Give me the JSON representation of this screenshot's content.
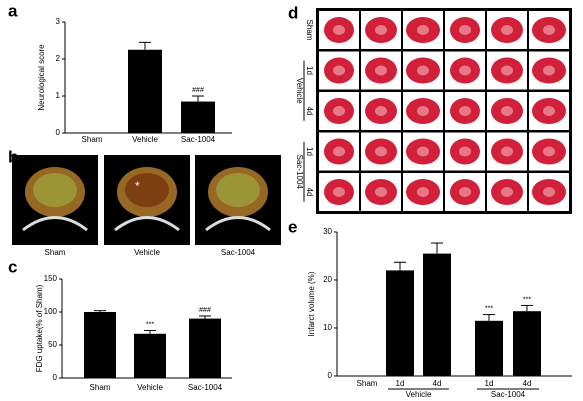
{
  "chart_data": [
    {
      "type": "bar",
      "panel": "a",
      "ylabel": "Neurological score",
      "categories": [
        "Sham",
        "Vehicle",
        "Sac-1004"
      ],
      "values": [
        0,
        2.25,
        0.85
      ],
      "errors": [
        0,
        0.2,
        0.15
      ],
      "annotations": [
        null,
        null,
        "###"
      ],
      "color": "#000000",
      "ylim": [
        0,
        3
      ],
      "yticks": [
        0,
        1,
        2,
        3
      ]
    },
    {
      "type": "bar",
      "panel": "c",
      "ylabel": "FDG uptake(% of Sham)",
      "categories": [
        "Sham",
        "Vehicle",
        "Sac-1004"
      ],
      "values": [
        100,
        67,
        90
      ],
      "errors": [
        2,
        5,
        4
      ],
      "annotations": [
        null,
        "***",
        "###"
      ],
      "color": "#000000",
      "ylim": [
        0,
        150
      ],
      "yticks": [
        0,
        50,
        100,
        150
      ]
    },
    {
      "type": "bar",
      "panel": "e",
      "ylabel": "Infarct volume (%)",
      "categories": [
        "Sham",
        "1d",
        "4d",
        "1d",
        "4d"
      ],
      "groups": [
        "Vehicle",
        "Sac-1004"
      ],
      "values": [
        0,
        22,
        25.5,
        11.5,
        13.5
      ],
      "errors": [
        0,
        1.7,
        2.2,
        1.3,
        1.2
      ],
      "annotations": [
        null,
        null,
        null,
        "***",
        "***"
      ],
      "color": "#000000",
      "ylim": [
        0,
        30
      ],
      "yticks": [
        0,
        10,
        20,
        30
      ]
    }
  ],
  "panel_b": {
    "panel": "b",
    "labels": [
      "Sham",
      "Vehicle",
      "Sac-1004"
    ],
    "marker": "*"
  },
  "panel_d": {
    "panel": "d",
    "row_labels": [
      "Sham",
      "1d",
      "4d",
      "1d",
      "4d"
    ],
    "groups": [
      "Vehicle",
      "Sac-1004"
    ]
  }
}
